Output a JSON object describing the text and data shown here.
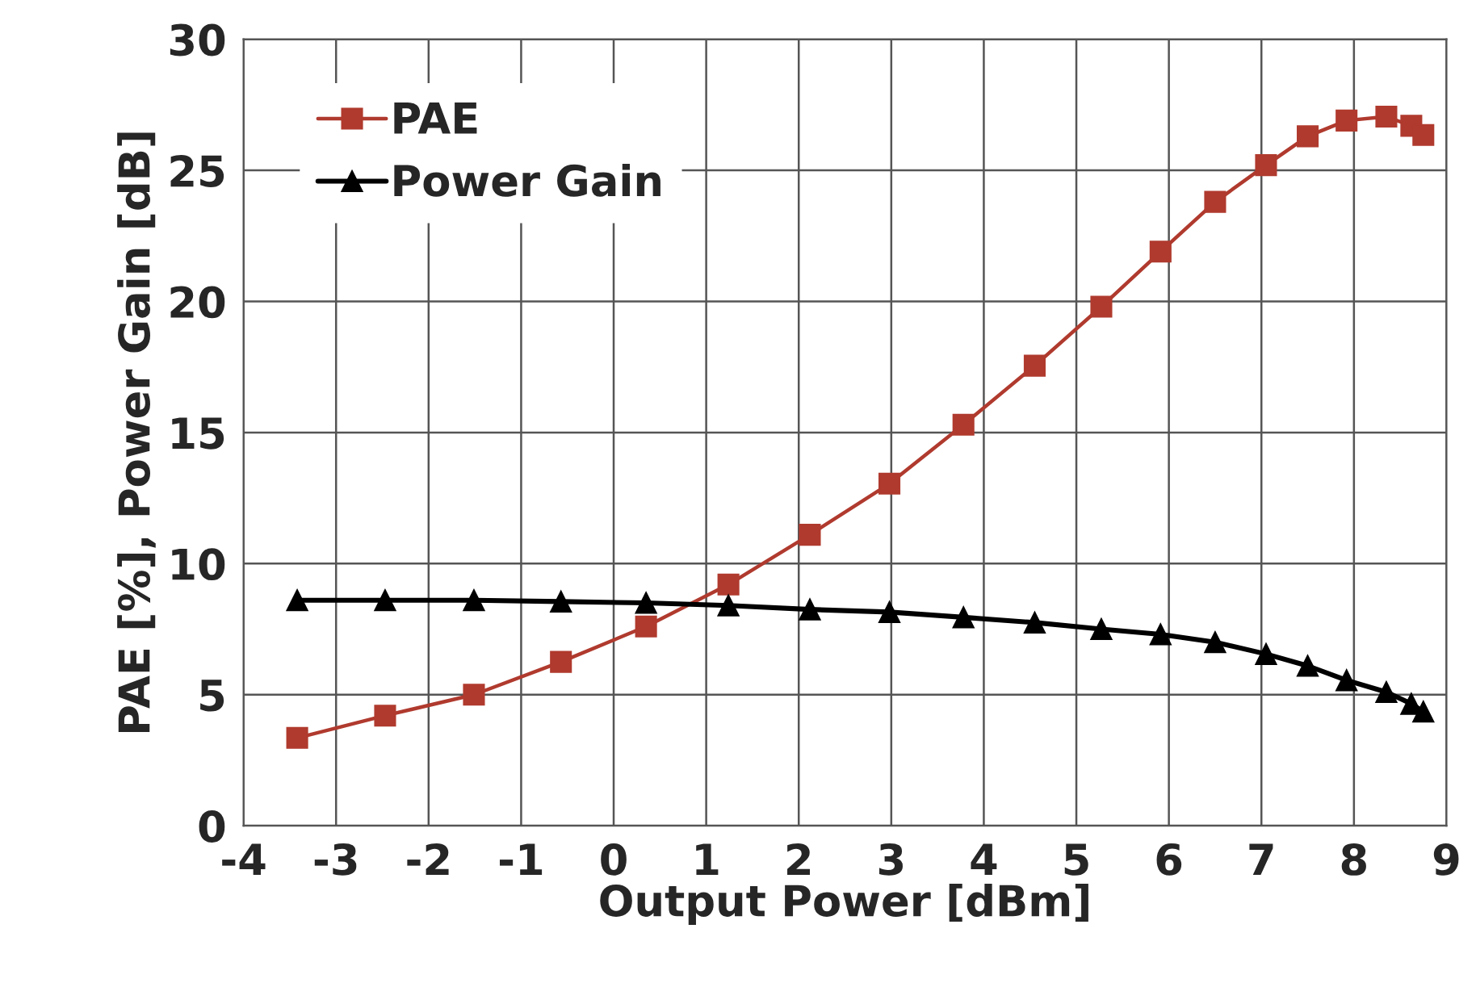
{
  "chart_data": {
    "type": "line",
    "xlabel": "Output Power [dBm]",
    "ylabel": "PAE [%], Power Gain [dB]",
    "x": [
      -3.42,
      -2.47,
      -1.51,
      -0.57,
      0.35,
      1.24,
      2.12,
      2.98,
      3.78,
      4.55,
      5.27,
      5.91,
      6.5,
      7.05,
      7.5,
      7.92,
      8.35,
      8.62,
      8.75
    ],
    "series": [
      {
        "name": "PAE",
        "color": "#b03a2e",
        "marker": "square",
        "values": [
          3.35,
          4.2,
          5.0,
          6.25,
          7.6,
          9.2,
          11.1,
          13.05,
          15.3,
          17.55,
          19.8,
          21.9,
          23.8,
          25.2,
          26.3,
          26.9,
          27.05,
          26.7,
          26.35
        ]
      },
      {
        "name": "Power Gain",
        "color": "#000000",
        "marker": "triangle",
        "values": [
          8.6,
          8.6,
          8.6,
          8.55,
          8.5,
          8.4,
          8.25,
          8.15,
          7.95,
          7.75,
          7.5,
          7.3,
          7.0,
          6.55,
          6.1,
          5.55,
          5.1,
          4.65,
          4.35
        ]
      }
    ],
    "xlim": [
      -4,
      9
    ],
    "xticks": [
      -4,
      -3,
      -2,
      -1,
      0,
      1,
      2,
      3,
      4,
      5,
      6,
      7,
      8,
      9
    ],
    "ylim": [
      0,
      30
    ],
    "yticks": [
      0,
      5,
      10,
      15,
      20,
      25,
      30
    ],
    "grid": true,
    "legend": "top left",
    "line_style": "solid"
  }
}
